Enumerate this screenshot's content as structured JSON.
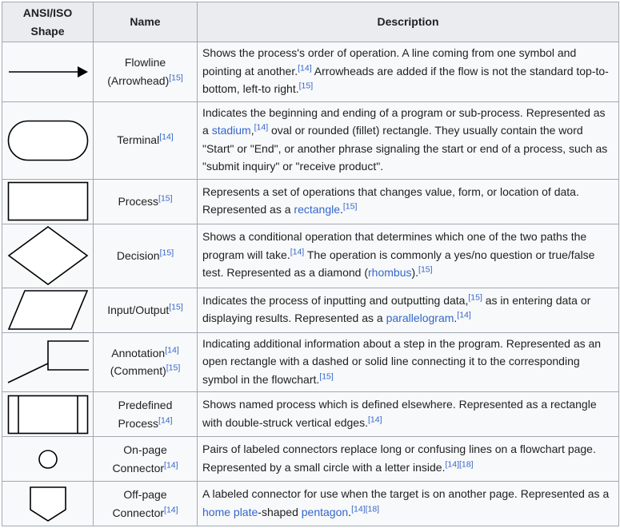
{
  "headers": {
    "shape": "ANSI/ISO Shape",
    "name": "Name",
    "description": "Description"
  },
  "rows": [
    {
      "shape_icon": "arrow-icon",
      "name": [
        {
          "t": "Flowline (Arrowhead)"
        },
        {
          "t": "[15]",
          "ref": true
        }
      ],
      "desc": [
        {
          "t": "Shows the process's order of operation. A line coming from one symbol and pointing at another."
        },
        {
          "t": "[14]",
          "ref": true
        },
        {
          "t": " Arrowheads are added if the flow is not the standard top-to-bottom, left-to right."
        },
        {
          "t": "[15]",
          "ref": true
        }
      ]
    },
    {
      "shape_icon": "terminal-stadium-icon",
      "name": [
        {
          "t": "Terminal"
        },
        {
          "t": "[14]",
          "ref": true
        }
      ],
      "desc": [
        {
          "t": "Indicates the beginning and ending of a program or sub-process. Represented as a "
        },
        {
          "t": "stadium",
          "link": true
        },
        {
          "t": ","
        },
        {
          "t": "[14]",
          "ref": true
        },
        {
          "t": " oval or rounded (fillet) rectangle. They usually contain the word \"Start\" or \"End\", or another phrase signaling the start or end of a process, such as \"submit inquiry\" or \"receive product\"."
        }
      ]
    },
    {
      "shape_icon": "process-rectangle-icon",
      "name": [
        {
          "t": "Process"
        },
        {
          "t": "[15]",
          "ref": true
        }
      ],
      "desc": [
        {
          "t": "Represents a set of operations that changes value, form, or location of data. Represented as a "
        },
        {
          "t": "rectangle",
          "link": true
        },
        {
          "t": "."
        },
        {
          "t": "[15]",
          "ref": true
        }
      ]
    },
    {
      "shape_icon": "decision-diamond-icon",
      "name": [
        {
          "t": "Decision"
        },
        {
          "t": "[15]",
          "ref": true
        }
      ],
      "desc": [
        {
          "t": "Shows a conditional operation that determines which one of the two paths the program will take."
        },
        {
          "t": "[14]",
          "ref": true
        },
        {
          "t": " The operation is commonly a yes/no question or true/false test. Represented as a diamond ("
        },
        {
          "t": "rhombus",
          "link": true
        },
        {
          "t": ")."
        },
        {
          "t": "[15]",
          "ref": true
        }
      ]
    },
    {
      "shape_icon": "input-output-parallelogram-icon",
      "name": [
        {
          "t": "Input/Output"
        },
        {
          "t": "[15]",
          "ref": true
        }
      ],
      "desc": [
        {
          "t": "Indicates the process of inputting and outputting data,"
        },
        {
          "t": "[15]",
          "ref": true
        },
        {
          "t": " as in entering data or displaying results. Represented as a "
        },
        {
          "t": "parallelogram",
          "link": true
        },
        {
          "t": "."
        },
        {
          "t": "[14]",
          "ref": true
        }
      ]
    },
    {
      "shape_icon": "annotation-bracket-icon",
      "name": [
        {
          "t": "Annotation"
        },
        {
          "t": "[14]",
          "ref": true
        },
        {
          "t": " (Comment)"
        },
        {
          "t": "[15]",
          "ref": true
        }
      ],
      "desc": [
        {
          "t": "Indicating additional information about a step in the program. Represented as an open rectangle with a dashed or solid line connecting it to the corresponding symbol in the flowchart."
        },
        {
          "t": "[15]",
          "ref": true
        }
      ]
    },
    {
      "shape_icon": "predefined-process-icon",
      "name": [
        {
          "t": "Predefined Process"
        },
        {
          "t": "[14]",
          "ref": true
        }
      ],
      "desc": [
        {
          "t": "Shows named process which is defined elsewhere. Represented as a rectangle with double-struck vertical edges."
        },
        {
          "t": "[14]",
          "ref": true
        }
      ]
    },
    {
      "shape_icon": "on-page-connector-circle-icon",
      "name": [
        {
          "t": "On-page Connector"
        },
        {
          "t": "[14]",
          "ref": true
        }
      ],
      "desc": [
        {
          "t": "Pairs of labeled connectors replace long or confusing lines on a flowchart page. Represented by a small circle with a letter inside."
        },
        {
          "t": "[14][18]",
          "ref": true
        }
      ]
    },
    {
      "shape_icon": "off-page-connector-pentagon-icon",
      "name": [
        {
          "t": "Off-page Connector"
        },
        {
          "t": "[14]",
          "ref": true
        }
      ],
      "desc": [
        {
          "t": "A labeled connector for use when the target is on another page. Represented as a "
        },
        {
          "t": "home plate",
          "link": true
        },
        {
          "t": "-shaped "
        },
        {
          "t": "pentagon",
          "link": true
        },
        {
          "t": "."
        },
        {
          "t": "[14][18]",
          "ref": true
        }
      ]
    }
  ]
}
